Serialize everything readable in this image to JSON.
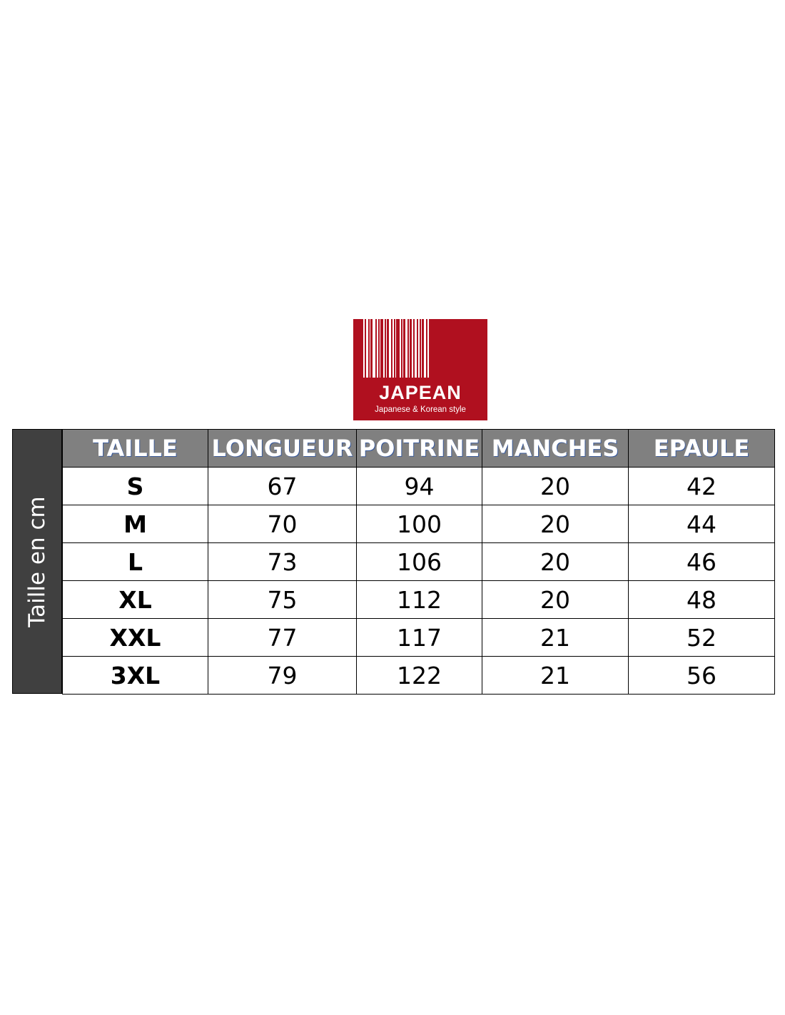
{
  "logo": {
    "brand": "JAPEAN",
    "tagline": "Japanese & Korean style",
    "color": "#b0101f"
  },
  "side_label": "Taille en cm",
  "headers": [
    "TAILLE",
    "LONGUEUR",
    "POITRINE",
    "MANCHES",
    "EPAULE"
  ],
  "rows": [
    [
      "S",
      "67",
      "94",
      "20",
      "42"
    ],
    [
      "M",
      "70",
      "100",
      "20",
      "44"
    ],
    [
      "L",
      "73",
      "106",
      "20",
      "46"
    ],
    [
      "XL",
      "75",
      "112",
      "20",
      "48"
    ],
    [
      "XXL",
      "77",
      "117",
      "21",
      "52"
    ],
    [
      "3XL",
      "79",
      "122",
      "21",
      "56"
    ]
  ]
}
